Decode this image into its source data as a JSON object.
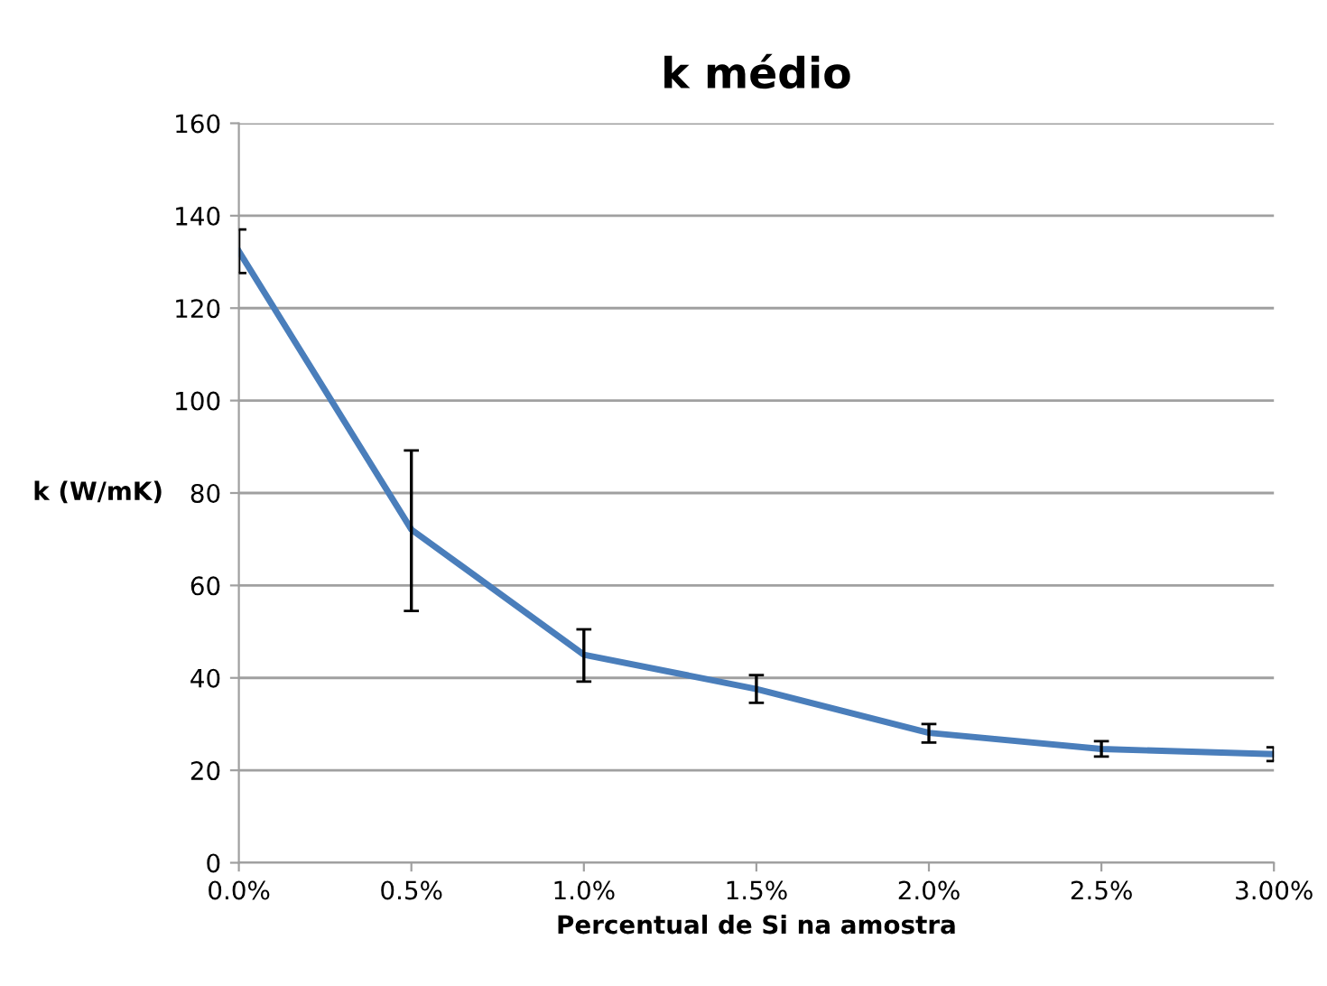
{
  "chart_data": {
    "type": "line",
    "title": "k médio",
    "xlabel": "Percentual de Si na amostra",
    "ylabel": "k (W/mK)",
    "categories": [
      "0.0%",
      "0.5%",
      "1.0%",
      "1.5%",
      "2.0%",
      "2.5%",
      "3.00%"
    ],
    "series": [
      {
        "color": "#4a7ebb",
        "values": [
          132.3,
          72.1,
          45.0,
          37.6,
          28.1,
          24.6,
          23.5
        ],
        "errors": [
          [
            127.6,
            137.0
          ],
          [
            54.5,
            89.2
          ],
          [
            39.2,
            50.5
          ],
          [
            34.6,
            40.6
          ],
          [
            26.0,
            30.0
          ],
          [
            23.0,
            26.3
          ],
          [
            22.0,
            25.0
          ]
        ]
      }
    ],
    "ylim": [
      0,
      160
    ],
    "yticks": [
      0,
      20,
      40,
      60,
      80,
      100,
      120,
      140,
      160
    ],
    "grid": "y",
    "legend": false,
    "marker": "none",
    "line_style": "solid"
  }
}
